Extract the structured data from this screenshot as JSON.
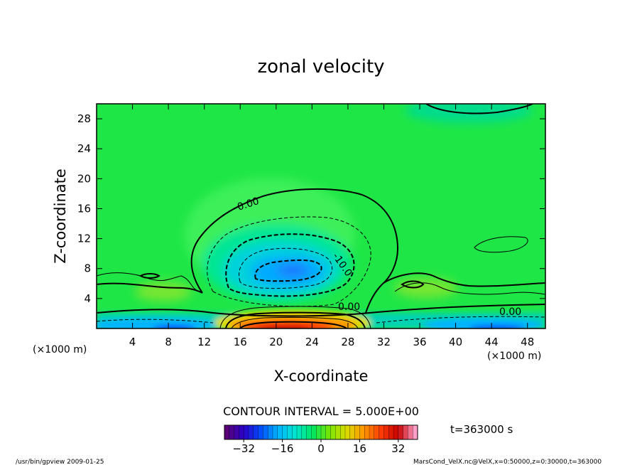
{
  "chart_data": {
    "type": "heatmap",
    "title": "zonal velocity",
    "xlabel": "X-coordinate",
    "ylabel": "Z-coordinate",
    "x_unit": "(×1000 m)",
    "y_unit": "(×1000 m)",
    "xlim": [
      0,
      50
    ],
    "ylim": [
      0,
      30
    ],
    "x_ticks": [
      4,
      8,
      12,
      16,
      20,
      24,
      28,
      32,
      36,
      40,
      44,
      48
    ],
    "y_ticks": [
      4,
      8,
      12,
      16,
      20,
      24,
      28
    ],
    "contour_interval_text": "CONTOUR INTERVAL = 5.000E+00",
    "contour_labels": [
      "0.00",
      "-10.0",
      "0.00",
      "0.00"
    ],
    "colorbar": {
      "range": [
        -40,
        40
      ],
      "ticks": [
        -32,
        -16,
        0,
        16,
        32
      ],
      "colors": [
        "#5a0078",
        "#2a00c8",
        "#0050ff",
        "#00b4ff",
        "#00e6d2",
        "#00e664",
        "#78e600",
        "#dcdc00",
        "#ff9600",
        "#ff3c00",
        "#c80000",
        "#ffa0c8"
      ]
    },
    "time_label": "t=363000 s",
    "features": [
      {
        "name": "negative core",
        "x": 22,
        "z": 8,
        "value": -25
      },
      {
        "name": "positive surface jet",
        "x": 21,
        "z": 0.5,
        "value": 35
      },
      {
        "name": "near-surface negative west",
        "x": 6,
        "z": 1,
        "value": -15
      },
      {
        "name": "near-surface negative east",
        "x": 45,
        "z": 0.8,
        "value": -20
      }
    ]
  },
  "footer": {
    "left": "/usr/bin/gpview   2009-01-25",
    "right": "MarsCond_VelX.nc@VelX,x=0:50000,z=0:30000,t=363000"
  }
}
